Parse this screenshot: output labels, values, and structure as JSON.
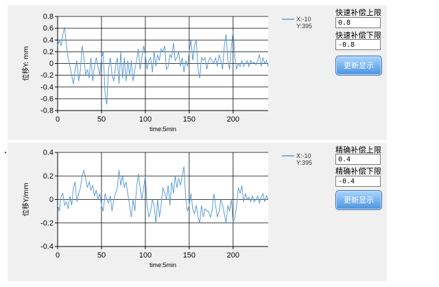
{
  "chart_data": [
    {
      "type": "line",
      "ylabel": "位移Y: mm",
      "xlabel": "time:5min",
      "xlim": [
        0,
        240
      ],
      "ylim": [
        -0.8,
        0.8
      ],
      "xticks": [
        "0",
        "50",
        "100",
        "150",
        "200"
      ],
      "yticks": [
        "0.8",
        "0.6",
        "0.4",
        "0.2",
        "0",
        "-0.2",
        "-0.4",
        "-0.6",
        "-0.8"
      ],
      "grid": true,
      "legend": {
        "placement": "top-right",
        "entries": [
          "X:-10",
          "Y:395"
        ],
        "color": "#5b9bd5"
      },
      "series": [
        {
          "color": "#5b9bd5",
          "x": [
            0,
            2,
            4,
            6,
            8,
            10,
            12,
            14,
            16,
            18,
            20,
            22,
            24,
            26,
            28,
            30,
            32,
            34,
            36,
            38,
            40,
            42,
            44,
            46,
            48,
            50,
            52,
            54,
            56,
            58,
            60,
            62,
            64,
            66,
            68,
            70,
            72,
            74,
            76,
            78,
            80,
            82,
            84,
            86,
            88,
            90,
            92,
            94,
            96,
            98,
            100,
            102,
            104,
            106,
            108,
            110,
            112,
            114,
            116,
            118,
            120,
            122,
            124,
            126,
            128,
            130,
            132,
            134,
            136,
            138,
            140,
            142,
            144,
            146,
            148,
            150,
            152,
            154,
            156,
            158,
            160,
            162,
            164,
            166,
            168,
            170,
            172,
            174,
            176,
            178,
            180,
            182,
            184,
            186,
            188,
            190,
            192,
            194,
            196,
            198,
            200,
            202,
            204,
            206,
            208,
            210,
            212,
            214,
            216,
            218,
            220,
            222,
            224,
            226,
            228,
            230,
            232,
            234,
            236,
            238,
            240
          ],
          "y": [
            0.3,
            0.4,
            0.3,
            0.5,
            0.62,
            0.3,
            0.1,
            -0.05,
            -0.2,
            -0.35,
            -0.1,
            0.05,
            -0.3,
            -0.1,
            0.3,
            0.1,
            -0.2,
            -0.1,
            -0.25,
            0.1,
            -0.3,
            -0.05,
            0.1,
            -0.05,
            -0.2,
            0.1,
            0.2,
            -0.5,
            -0.7,
            -0.1,
            0.1,
            -0.2,
            -0.3,
            -0.05,
            0.1,
            -0.35,
            0.2,
            -0.25,
            0.1,
            -0.3,
            0.05,
            -0.2,
            0.05,
            -0.3,
            -0.1,
            0.05,
            0.25,
            -0.1,
            0.1,
            0.3,
            0.15,
            -0.1,
            0.05,
            0.1,
            -0.15,
            0.2,
            -0.05,
            0.15,
            0.05,
            0.25,
            0.2,
            0.3,
            -0.1,
            -0.05,
            0.15,
            0.1,
            0.35,
            0.05,
            0.1,
            0.2,
            -0.05,
            0.1,
            -0.15,
            0.05,
            -0.05,
            0.2,
            0.4,
            0.05,
            0.3,
            0.4,
            -0.1,
            -0.25,
            0.1,
            0.05,
            0.1,
            -0.1,
            0.05,
            0.1,
            0.05,
            0.0,
            0.1,
            -0.05,
            0.15,
            0.05,
            -0.1,
            0.3,
            0.5,
            0.05,
            -0.1,
            0.3,
            0.55,
            0.1,
            -0.1,
            0.0,
            -0.05,
            0.05,
            -0.05,
            0.0,
            0.05,
            -0.05,
            0.05,
            0.0,
            0.02,
            -0.02,
            0.05,
            0.15,
            -0.05,
            0.1,
            0.0,
            0.05,
            -0.05
          ]
        }
      ]
    },
    {
      "type": "line",
      "ylabel": "位移Y/mm",
      "xlabel": "time:5min",
      "xlim": [
        0,
        240
      ],
      "ylim": [
        -0.4,
        0.4
      ],
      "xticks": [
        "0",
        "50",
        "100",
        "150",
        "200"
      ],
      "yticks": [
        "0.4",
        "0.2",
        "0",
        "-0.2",
        "-0.4"
      ],
      "grid": true,
      "legend": {
        "placement": "top-right",
        "entries": [
          "X:-10",
          "Y:395"
        ],
        "color": "#5b9bd5"
      },
      "series": [
        {
          "color": "#5b9bd5",
          "x": [
            0,
            2,
            4,
            6,
            8,
            10,
            12,
            14,
            16,
            18,
            20,
            22,
            24,
            26,
            28,
            30,
            32,
            34,
            36,
            38,
            40,
            42,
            44,
            46,
            48,
            50,
            52,
            54,
            56,
            58,
            60,
            62,
            64,
            66,
            68,
            70,
            72,
            74,
            76,
            78,
            80,
            82,
            84,
            86,
            88,
            90,
            92,
            94,
            96,
            98,
            100,
            102,
            104,
            106,
            108,
            110,
            112,
            114,
            116,
            118,
            120,
            122,
            124,
            126,
            128,
            130,
            132,
            134,
            136,
            138,
            140,
            142,
            144,
            146,
            148,
            150,
            152,
            154,
            156,
            158,
            160,
            162,
            164,
            166,
            168,
            170,
            172,
            174,
            176,
            178,
            180,
            182,
            184,
            186,
            188,
            190,
            192,
            194,
            196,
            198,
            200,
            202,
            204,
            206,
            208,
            210,
            212,
            214,
            216,
            218,
            220,
            222,
            224,
            226,
            228,
            230,
            232,
            234,
            236,
            238,
            240
          ],
          "y": [
            -0.05,
            -0.1,
            0.03,
            0.05,
            -0.05,
            -0.02,
            -0.08,
            0.03,
            -0.05,
            0.1,
            0.15,
            -0.02,
            0.05,
            0.1,
            0.2,
            0.25,
            0.18,
            0.1,
            0.15,
            0.08,
            0.12,
            0.03,
            0.08,
            0.0,
            0.05,
            -0.05,
            -0.1,
            0.05,
            0.0,
            -0.03,
            0.03,
            -0.1,
            0.0,
            0.05,
            0.1,
            0.25,
            0.12,
            0.2,
            0.1,
            0.15,
            0.05,
            -0.05,
            -0.15,
            0.0,
            -0.1,
            0.1,
            0.22,
            0.1,
            0.0,
            0.1,
            0.2,
            -0.05,
            -0.15,
            -0.1,
            0.0,
            -0.05,
            -0.2,
            0.0,
            -0.15,
            -0.05,
            0.1,
            0.05,
            0.0,
            0.12,
            -0.05,
            0.15,
            0.05,
            0.2,
            0.1,
            0.18,
            0.12,
            0.2,
            0.28,
            0.0,
            -0.1,
            -0.05,
            0.05,
            -0.08,
            -0.12,
            -0.05,
            -0.15,
            -0.2,
            -0.05,
            -0.15,
            -0.08,
            -0.1,
            -0.1,
            -0.15,
            -0.1,
            0.05,
            -0.05,
            -0.15,
            -0.1,
            0.0,
            -0.05,
            -0.12,
            -0.2,
            -0.05,
            -0.1,
            0.0,
            -0.2,
            -0.15,
            -0.05,
            0.1,
            0.05,
            0.12,
            -0.02,
            0.05,
            0.0,
            0.02,
            -0.02,
            0.03,
            -0.02,
            0.0,
            0.03,
            -0.03,
            0.02,
            0.05,
            -0.02,
            0.03,
            0.0
          ]
        }
      ]
    }
  ],
  "controls": {
    "top": {
      "upper_label": "快速补偿上限",
      "upper_value": "0.8",
      "lower_label": "快速补偿下限",
      "lower_value": "-0.8",
      "button_label": "更新显示"
    },
    "bottom": {
      "upper_label": "精确补偿上限",
      "upper_value": "0.4",
      "lower_label": "精确补偿下限",
      "lower_value": "-0.4",
      "button_label": "更新显示"
    }
  }
}
